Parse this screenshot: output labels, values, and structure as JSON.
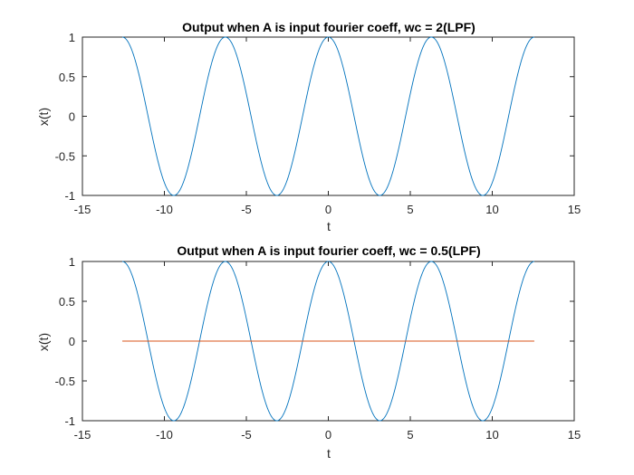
{
  "chart_data": [
    {
      "type": "line",
      "title": "Output when A is input fourier coeff, wc = 2(LPF)",
      "xlabel": "t",
      "ylabel": "x(t)",
      "xlim": [
        -15,
        15
      ],
      "ylim": [
        -1,
        1
      ],
      "xticks": [
        "-15",
        "-10",
        "-5",
        "0",
        "5",
        "10",
        "15"
      ],
      "yticks": [
        "-1",
        "-0.5",
        "0",
        "0.5",
        "1"
      ],
      "grid": false,
      "series": [
        {
          "function": "cos(t)",
          "t_range": [
            -12.566,
            12.566
          ],
          "color": "#0072BD"
        }
      ]
    },
    {
      "type": "line",
      "title": "Output when A is input fourier coeff, wc = 0.5(LPF)",
      "xlabel": "t",
      "ylabel": "x(t)",
      "xlim": [
        -15,
        15
      ],
      "ylim": [
        -1,
        1
      ],
      "xticks": [
        "-15",
        "-10",
        "-5",
        "0",
        "5",
        "10",
        "15"
      ],
      "yticks": [
        "-1",
        "-0.5",
        "0",
        "0.5",
        "1"
      ],
      "grid": false,
      "series": [
        {
          "function": "cos(t)",
          "t_range": [
            -12.566,
            12.566
          ],
          "color": "#0072BD"
        },
        {
          "function": "0",
          "t_range": [
            -12.566,
            12.566
          ],
          "color": "#D95319"
        }
      ]
    }
  ]
}
